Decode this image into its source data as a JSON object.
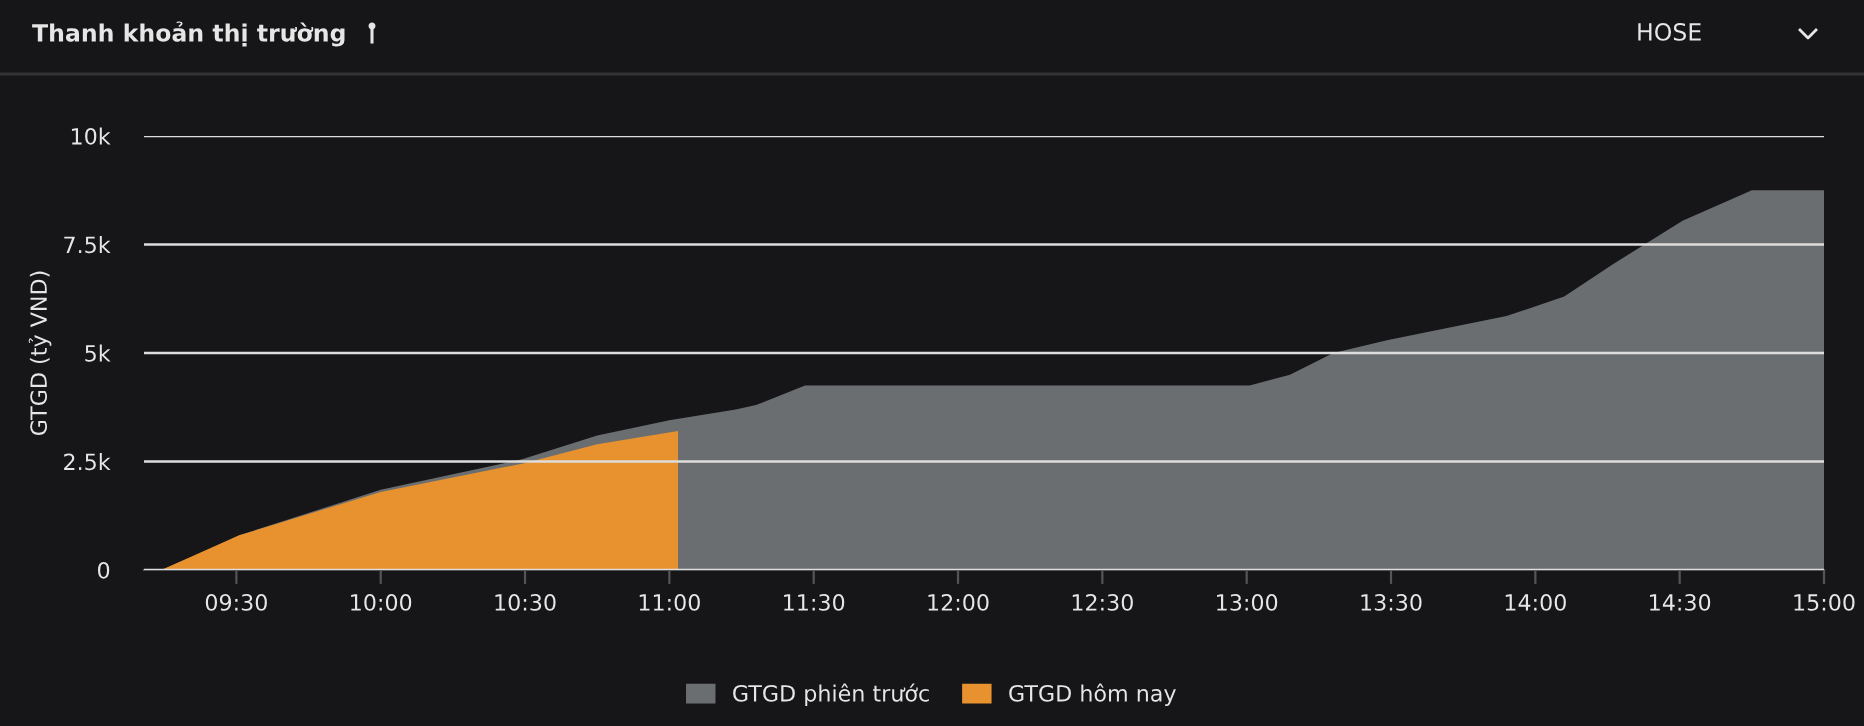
{
  "chart_data": {
    "type": "area",
    "title": "Thanh khoản thị trường",
    "ylabel": "GTGD (tỷ VND)",
    "annotations": [
      "HOSE"
    ],
    "series": [
      {
        "name": "GTGD phiên trước",
        "color": "#6b6e70",
        "x": [
          9.24,
          9.38,
          9.51,
          10.0,
          10.49,
          10.75,
          11.0,
          11.23,
          11.3,
          11.47,
          13.01,
          13.15,
          13.3,
          13.49,
          13.9,
          14.1,
          14.27,
          14.51,
          14.75,
          15.0
        ],
        "values": [
          0,
          0.4,
          0.8,
          1.85,
          2.55,
          3.1,
          3.45,
          3.7,
          3.8,
          4.25,
          4.25,
          4.5,
          5.0,
          5.3,
          5.85,
          6.3,
          7.05,
          8.05,
          8.75,
          8.75
        ]
      },
      {
        "name": "GTGD hôm nay",
        "color": "#e8922f",
        "x": [
          9.24,
          9.51,
          10.0,
          10.49,
          10.75,
          11.03
        ],
        "values": [
          0,
          0.8,
          1.8,
          2.45,
          2.9,
          3.2
        ]
      }
    ],
    "xlim": [
      9.18,
      15.0
    ],
    "xticks": [
      {
        "value": 9.5,
        "label": "09:30"
      },
      {
        "value": 10.0,
        "label": "10:00"
      },
      {
        "value": 10.5,
        "label": "10:30"
      },
      {
        "value": 11.0,
        "label": "11:00"
      },
      {
        "value": 11.5,
        "label": "11:30"
      },
      {
        "value": 12.0,
        "label": "12:00"
      },
      {
        "value": 12.5,
        "label": "12:30"
      },
      {
        "value": 13.0,
        "label": "13:00"
      },
      {
        "value": 13.5,
        "label": "13:30"
      },
      {
        "value": 14.0,
        "label": "14:00"
      },
      {
        "value": 14.5,
        "label": "14:30"
      },
      {
        "value": 15.0,
        "label": "15:00"
      }
    ],
    "ylim": [
      0,
      10
    ],
    "yticks": [
      {
        "value": 0,
        "label": "0"
      },
      {
        "value": 2.5,
        "label": "2.5k"
      },
      {
        "value": 5,
        "label": "5k"
      },
      {
        "value": 7.5,
        "label": "7.5k"
      },
      {
        "value": 10,
        "label": "10k"
      }
    ],
    "grid": "y",
    "legend": "bottom"
  }
}
